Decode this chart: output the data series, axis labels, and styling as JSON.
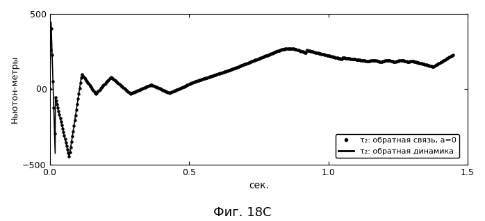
{
  "title": "Фиг. 18C",
  "xlabel": "сек.",
  "ylabel": "Ньютон-метры",
  "xlim": [
    0,
    1.5
  ],
  "ylim": [
    -500,
    500
  ],
  "yticks": [
    -500,
    0,
    500
  ],
  "xticks": [
    0,
    0.5,
    1,
    1.5
  ],
  "legend_label_dotted": "τ₂: обратная связь, a=0",
  "legend_label_solid": "τ₂: обратная динамика",
  "bg_color": "#ffffff",
  "line_color": "#000000",
  "figsize": [
    6.98,
    3.18
  ],
  "dpi": 100
}
